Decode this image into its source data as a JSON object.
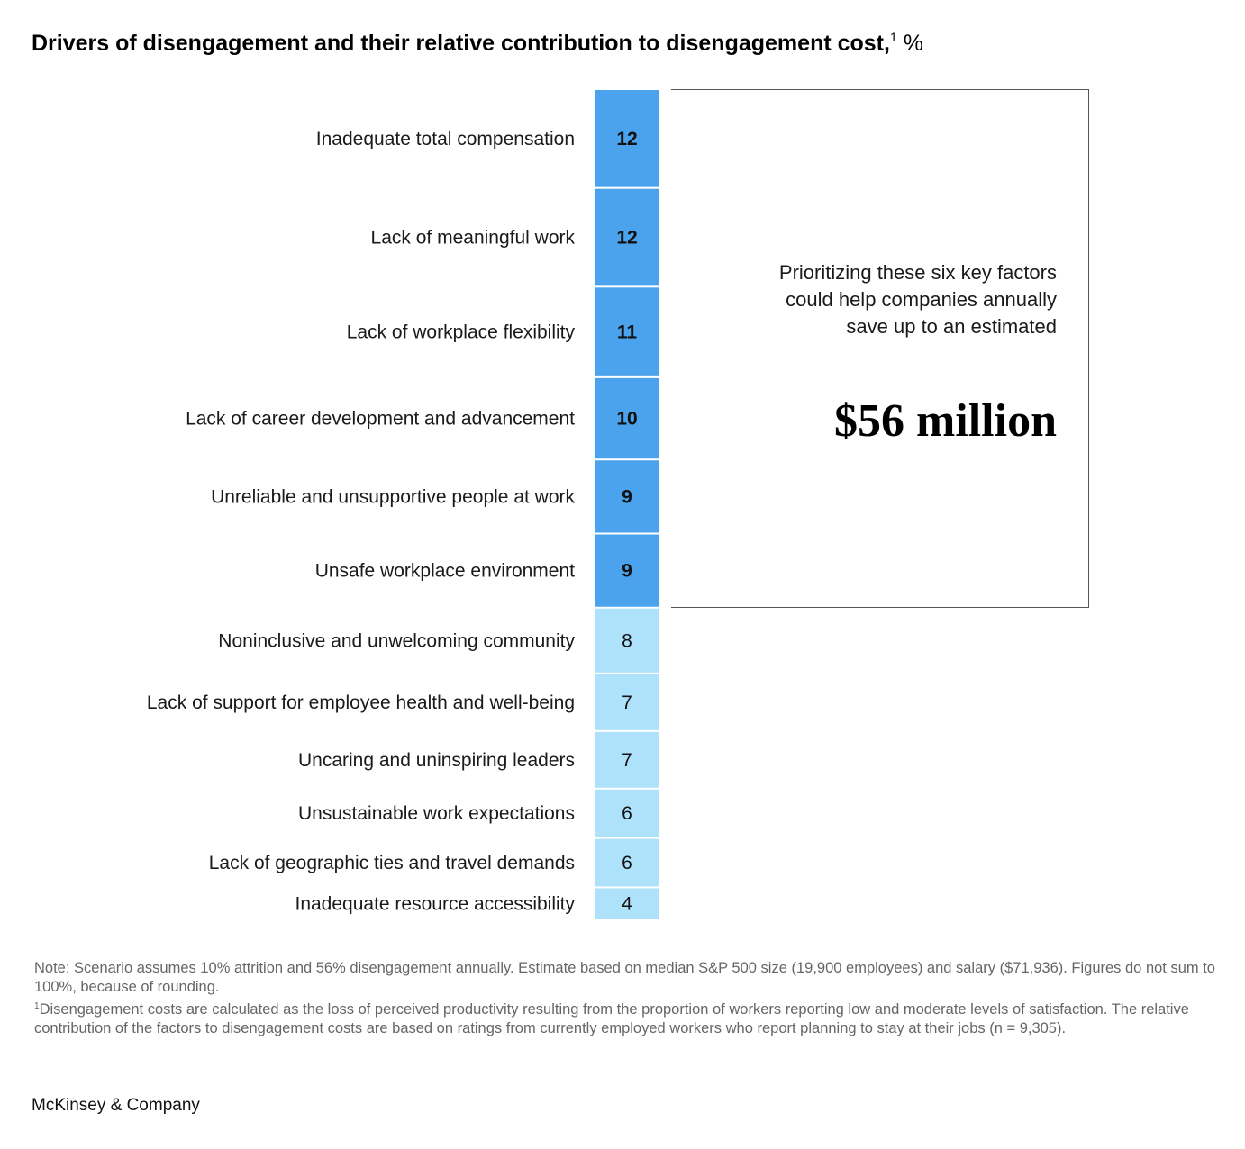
{
  "title": {
    "text": "Drivers of disengagement and their relative contribution to disengagement cost,",
    "footnote_ref": "1",
    "unit": "%"
  },
  "callout": {
    "text": "Prioritizing these six key factors could help companies annually save up to an estimated",
    "amount": "$56 million"
  },
  "chart_data": {
    "type": "bar",
    "orientation": "stacked-vertical-column",
    "categories": [
      "Inadequate total compensation",
      "Lack of meaningful work",
      "Lack of workplace flexibility",
      "Lack of career development and advancement",
      "Unreliable and unsupportive people at work",
      "Unsafe workplace environment",
      "Noninclusive and unwelcoming community",
      "Lack of support for employee health and well-being",
      "Uncaring and uninspiring leaders",
      "Unsustainable work expectations",
      "Lack of geographic ties and travel demands",
      "Inadequate resource accessibility"
    ],
    "values": [
      12,
      12,
      11,
      10,
      9,
      9,
      8,
      7,
      7,
      6,
      6,
      4
    ],
    "highlighted_count": 6,
    "colors": {
      "highlight": "#4aa3ec",
      "other": "#aee2fb",
      "separator": "#ffffff"
    }
  },
  "notes": {
    "note": "Note: Scenario assumes 10% attrition and 56% disengagement annually. Estimate based on median S&P 500 size (19,900 employees) and salary ($71,936). Figures do not sum to 100%, because of rounding.",
    "footnote_mark": "1",
    "footnote": "Disengagement costs are calculated as the loss of perceived productivity resulting from the proportion of workers reporting low and moderate levels of satisfaction. The relative contribution of the factors to disengagement costs are based on ratings from currently employed workers who report planning to stay at their jobs (n = 9,305)."
  },
  "brand": "McKinsey & Company"
}
